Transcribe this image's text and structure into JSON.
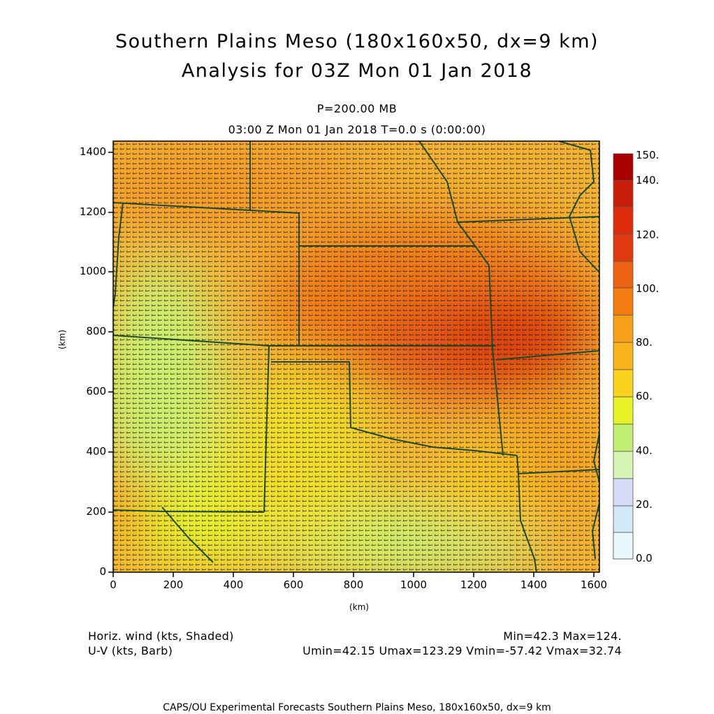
{
  "title_line1": "Southern Plains Meso (180x160x50, dx=9 km)",
  "title_line2": "Analysis for 03Z Mon 01 Jan 2018",
  "level_label": "P=200.00 MB",
  "time_label": "03:00 Z Mon 01 Jan 2018    T=0.0 s (0:00:00)",
  "x_axis": {
    "label": "(km)",
    "ticks": [
      "0",
      "200",
      "400",
      "600",
      "800",
      "1000",
      "1200",
      "1400",
      "1600"
    ]
  },
  "y_axis": {
    "label": "(km)",
    "ticks": [
      "0",
      "200",
      "400",
      "600",
      "800",
      "1000",
      "1200",
      "1400"
    ]
  },
  "colorbar": {
    "labels": [
      "150.",
      "140.",
      "120.",
      "100.",
      "80.",
      "60.",
      "40.",
      "20.",
      "0.0"
    ],
    "colors": [
      "#ffffff",
      "#e6f4fb",
      "#cfe6f5",
      "#d4dcf7",
      "#d6f5b4",
      "#c0ee72",
      "#e6f226",
      "#fad21e",
      "#f7a01a",
      "#f57c0f",
      "#e85c12",
      "#e23a10",
      "#c81e0a",
      "#b40a05",
      "#a80000"
    ]
  },
  "field": {
    "name": "Horiz. wind (kts, Shaded)",
    "stats": "Min=42.3 Max=124.",
    "vector": "U-V (kts, Barb)",
    "vector_stats": "Umin=42.15 Umax=123.29 Vmin=-57.42 Vmax=32.74"
  },
  "footer": "CAPS/OU Experimental Forecasts  Southern Plains Meso, 180x160x50, dx=9 km"
}
